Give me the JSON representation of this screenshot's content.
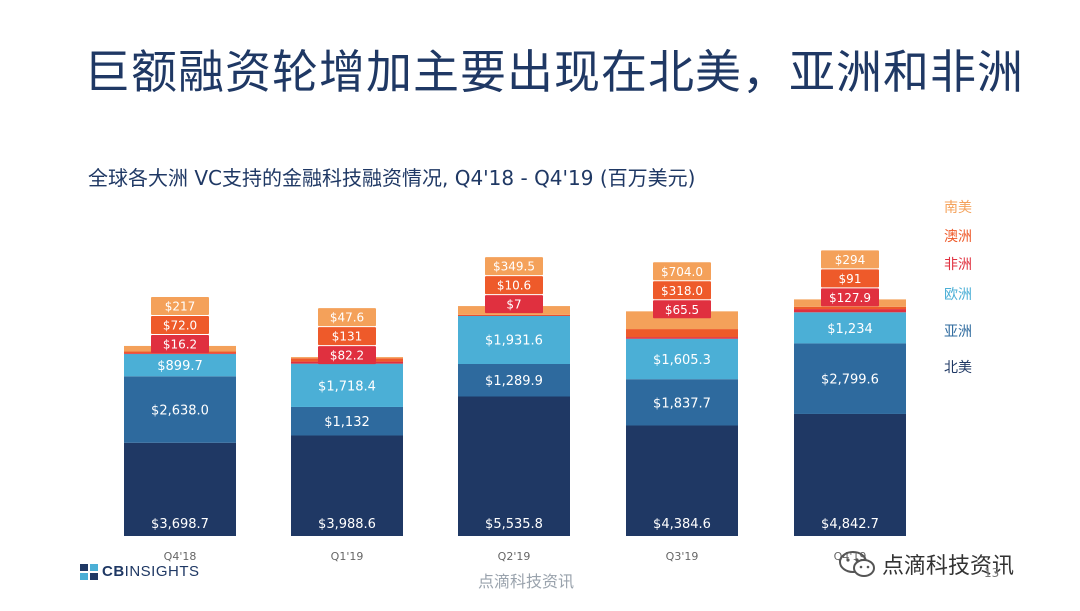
{
  "slide": {
    "title": "巨额融资轮增加主要出现在北美，亚洲和非洲",
    "page_number": "13"
  },
  "footer": {
    "logo_text_cb": "CB",
    "logo_text_rest": "INSIGHTS",
    "watermark": "点滴科技资讯",
    "wechat_label": "点滴科技资讯",
    "wechat_icon": "wechat-icon"
  },
  "colors": {
    "north_america": "#1f3864",
    "asia": "#2e6a9e",
    "europe": "#4bafd6",
    "africa": "#e0303f",
    "australia": "#ee5a2a",
    "south_america": "#f4a15a",
    "title": "#1f3864"
  },
  "chart_data": {
    "type": "bar",
    "stacked": true,
    "title": "全球各大洲 VC支持的金融科技融资情况, Q4'18 -  Q4'19 (百万美元)",
    "categories": [
      "Q4'18",
      "Q1'19",
      "Q2'19",
      "Q3'19",
      "Q4'19"
    ],
    "series": [
      {
        "name": "北美",
        "values": [
          3698.7,
          3988.6,
          5535.8,
          4384.6,
          4842.7
        ],
        "labels": [
          "$3,698.7",
          "$3,988.6",
          "$5,535.8",
          "$4,384.6",
          "$4,842.7"
        ]
      },
      {
        "name": "亚洲",
        "values": [
          2638.0,
          1132,
          1289.9,
          1837.7,
          2799.6
        ],
        "labels": [
          "$2,638.0",
          "$1,132",
          "$1,289.9",
          "$1,837.7",
          "$2,799.6"
        ]
      },
      {
        "name": "欧洲",
        "values": [
          899.7,
          1718.4,
          1931.6,
          1605.3,
          1234
        ],
        "labels": [
          "$899.7",
          "$1,718.4",
          "$1,931.6",
          "$1,605.3",
          "$1,234"
        ]
      },
      {
        "name": "非洲",
        "values": [
          16.2,
          82.2,
          7,
          65.5,
          127.9
        ],
        "labels": [
          "$16.2",
          "$82.2",
          "$7",
          "$65.5",
          "$127.9"
        ]
      },
      {
        "name": "澳洲",
        "values": [
          72.0,
          131,
          10.6,
          318.0,
          91
        ],
        "labels": [
          "$72.0",
          "$131",
          "$10.6",
          "$318.0",
          "$91"
        ]
      },
      {
        "name": "南美",
        "values": [
          217,
          47.6,
          349.5,
          704.0,
          294
        ],
        "labels": [
          "$217",
          "$47.6",
          "$349.5",
          "$704.0",
          "$294"
        ]
      }
    ],
    "legend_position": "right",
    "legend_order": [
      "南美",
      "澳洲",
      "非洲",
      "欧洲",
      "亚洲",
      "北美"
    ],
    "grid": false
  }
}
